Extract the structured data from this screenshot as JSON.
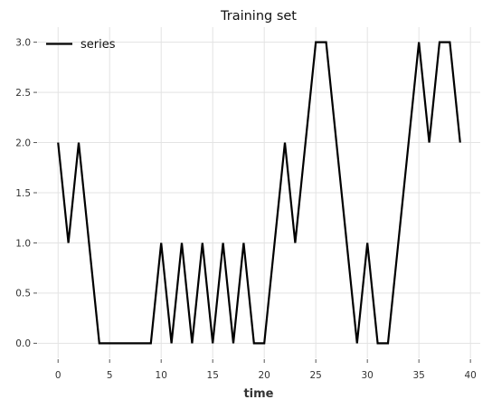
{
  "chart_data": {
    "type": "line",
    "title": "Training set",
    "xlabel": "time",
    "ylabel": "",
    "xlim": [
      -1.95,
      40.95
    ],
    "ylim": [
      -0.15,
      3.15
    ],
    "xticks": [
      0,
      5,
      10,
      15,
      20,
      25,
      30,
      35,
      40
    ],
    "yticks": [
      0.0,
      0.5,
      1.0,
      1.5,
      2.0,
      2.5,
      3.0
    ],
    "xtick_labels": [
      "0",
      "5",
      "10",
      "15",
      "20",
      "25",
      "30",
      "35",
      "40"
    ],
    "ytick_labels": [
      "0.0",
      "0.5",
      "1.0",
      "1.5",
      "2.0",
      "2.5",
      "3.0"
    ],
    "grid": true,
    "legend_position": "top-left",
    "series": [
      {
        "name": "series",
        "color": "#000000",
        "x": [
          0,
          1,
          2,
          3,
          4,
          5,
          6,
          7,
          8,
          9,
          10,
          11,
          12,
          13,
          14,
          15,
          16,
          17,
          18,
          19,
          20,
          21,
          22,
          23,
          24,
          25,
          26,
          27,
          28,
          29,
          30,
          31,
          32,
          33,
          34,
          35,
          36,
          37,
          38,
          39
        ],
        "values": [
          2,
          1,
          2,
          1,
          0,
          0,
          0,
          0,
          0,
          0,
          1,
          0,
          1,
          0,
          1,
          0,
          1,
          0,
          1,
          0,
          0,
          1,
          2,
          1,
          2,
          3,
          3,
          2,
          1,
          0,
          1,
          0,
          0,
          1,
          2,
          3,
          2,
          3,
          3,
          2
        ]
      }
    ]
  }
}
